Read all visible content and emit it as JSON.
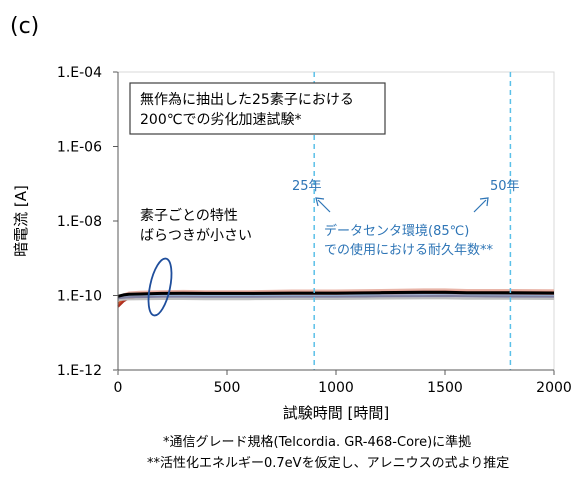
{
  "panel_label": "(c)",
  "footnotes": [
    "*通信グレード規格(Telcordia. GR-468-Core)に準拠",
    "**活性化エネルギー0.7eVを仮定し、アレニウスの式より推定"
  ],
  "chart_data": {
    "type": "line",
    "title": "",
    "xlabel": "試験時間 [時間]",
    "ylabel": "暗電流 [A]",
    "xlim": [
      0,
      2000
    ],
    "ylim": [
      1e-12,
      0.0001
    ],
    "yscale": "log",
    "x_ticks": [
      0,
      500,
      1000,
      1500,
      2000
    ],
    "x_tick_labels": [
      "0",
      "500",
      "1000",
      "1500",
      "2000"
    ],
    "y_ticks": [
      1e-12,
      1e-10,
      1e-08,
      1e-06,
      0.0001
    ],
    "y_tick_labels": [
      "1.E-12",
      "1.E-10",
      "1.E-08",
      "1.E-06",
      "1.E-04"
    ],
    "grid": false,
    "legend": "none",
    "x": [
      0,
      25,
      50,
      100,
      200,
      300,
      400,
      600,
      800,
      1000,
      1200,
      1400,
      1500,
      1600,
      1800,
      2000
    ],
    "series": [
      {
        "color": "#e8b4a8",
        "values": [
          8e-11,
          1.05e-10,
          1.2e-10,
          1.25e-10,
          1.3e-10,
          1.32e-10,
          1.3e-10,
          1.3e-10,
          1.35e-10,
          1.35e-10,
          1.4e-10,
          1.45e-10,
          1.45e-10,
          1.4e-10,
          1.4e-10,
          1.38e-10
        ]
      },
      {
        "color": "#d05a2e",
        "values": [
          6e-11,
          8e-11,
          9.5e-11,
          1.05e-10,
          1.12e-10,
          1.15e-10,
          1.12e-10,
          1.12e-10,
          1.15e-10,
          1.15e-10,
          1.18e-10,
          1.2e-10,
          1.22e-10,
          1.18e-10,
          1.18e-10,
          1.15e-10
        ]
      },
      {
        "color": "#b03020",
        "values": [
          5e-11,
          7e-11,
          8.5e-11,
          9.5e-11,
          1e-10,
          1.05e-10,
          1.02e-10,
          1.02e-10,
          1.05e-10,
          1.05e-10,
          1.08e-10,
          1.1e-10,
          1.12e-10,
          1.1e-10,
          1.08e-10,
          1.06e-10
        ]
      },
      {
        "color": "#f0a090",
        "values": [
          9e-11,
          1e-10,
          1.08e-10,
          1.15e-10,
          1.2e-10,
          1.22e-10,
          1.2e-10,
          1.2e-10,
          1.22e-10,
          1.22e-10,
          1.26e-10,
          1.28e-10,
          1.3e-10,
          1.27e-10,
          1.26e-10,
          1.24e-10
        ]
      },
      {
        "color": "#2e75b6",
        "values": [
          9.5e-11,
          1.02e-10,
          1.05e-10,
          1.08e-10,
          1.12e-10,
          1.13e-10,
          1.12e-10,
          1.12e-10,
          1.14e-10,
          1.14e-10,
          1.17e-10,
          1.2e-10,
          1.2e-10,
          1.17e-10,
          1.16e-10,
          1.15e-10
        ]
      },
      {
        "color": "#9dc3e6",
        "values": [
          9e-11,
          9.3e-11,
          9.5e-11,
          9.6e-11,
          9.8e-11,
          9.8e-11,
          9.7e-11,
          9.7e-11,
          9.8e-11,
          9.8e-11,
          1e-10,
          1.02e-10,
          1.02e-10,
          1e-10,
          9.9e-11,
          9.8e-11
        ]
      },
      {
        "color": "#c0c0c0",
        "values": [
          7.5e-11,
          7.8e-11,
          7.9e-11,
          8e-11,
          8.1e-11,
          8.1e-11,
          8e-11,
          8e-11,
          8.1e-11,
          8.1e-11,
          8.3e-11,
          8.4e-11,
          8.4e-11,
          8.2e-11,
          8.2e-11,
          8.1e-11
        ]
      },
      {
        "color": "#8080a0",
        "values": [
          8.5e-11,
          8.8e-11,
          9e-11,
          9.1e-11,
          9.3e-11,
          9.3e-11,
          9.2e-11,
          9.2e-11,
          9.3e-11,
          9.3e-11,
          9.5e-11,
          9.6e-11,
          9.7e-11,
          9.5e-11,
          9.4e-11,
          9.3e-11
        ]
      },
      {
        "color": "#000000",
        "values": [
          9.5e-11,
          1.04e-10,
          1.08e-10,
          1.1e-10,
          1.14e-10,
          1.15e-10,
          1.14e-10,
          1.14e-10,
          1.16e-10,
          1.16e-10,
          1.19e-10,
          1.22e-10,
          1.22e-10,
          1.19e-10,
          1.18e-10,
          1.17e-10
        ]
      }
    ],
    "vlines": [
      {
        "x": 900,
        "label": "25年",
        "color": "#5bc0e8"
      },
      {
        "x": 1800,
        "label": "50年",
        "color": "#5bc0e8"
      }
    ],
    "annotations": {
      "box_lines": [
        "無作為に抽出した25素子における",
        "200℃での劣化加速試験*"
      ],
      "spread_lines": [
        "素子ごとの特性",
        "ばらつきが小さい"
      ],
      "datacenter_lines": [
        "データセンタ環境(85℃)",
        "での使用における耐久年数**"
      ],
      "datacenter_color": "#2e75b6"
    }
  }
}
